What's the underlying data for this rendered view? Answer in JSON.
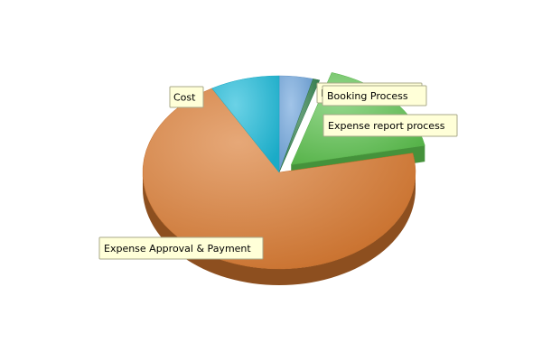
{
  "chart_data": {
    "type": "pie",
    "style": "3d-exploded",
    "title": "",
    "slices": [
      {
        "label": "Policy Management",
        "value": 4,
        "color": "#6ea4dc",
        "exploded": false
      },
      {
        "label": "Booking Process",
        "value": 0.8,
        "color": "#2f7f4a",
        "exploded": false
      },
      {
        "label": "Expense report process",
        "value": 17,
        "color": "#5cc24e",
        "exploded": true
      },
      {
        "label": "Expense Approval & Payment",
        "value": 70,
        "color": "#d9792f",
        "exploded": false
      },
      {
        "label": "Cost",
        "value": 8.2,
        "color": "#1cbad8",
        "exploded": false
      }
    ],
    "legend": "none",
    "labels": "callouts"
  }
}
